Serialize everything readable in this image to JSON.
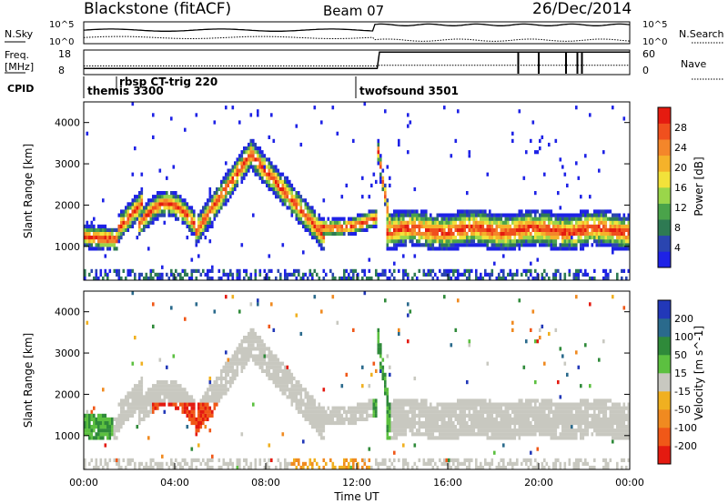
{
  "header": {
    "title": "Blackstone (fitACF)",
    "beam": "Beam 07",
    "date": "26/Dec/2014"
  },
  "top_panels": {
    "nsky_label": "N.Sky",
    "nsearch_label": "N.Search",
    "nsky_ticks": [
      "10^5",
      "10^0"
    ],
    "nsearch_ticks": [
      "10^5",
      "10^0"
    ],
    "freq_label_1": "Freq.",
    "freq_label_2": "[MHz]",
    "freq_ticks": [
      "18",
      "8"
    ],
    "nave_label": "Nave",
    "nave_ticks": [
      "60",
      "0"
    ],
    "cpid_label": "CPID",
    "cpid_modes": [
      {
        "name": "themis 3300",
        "start_hour": 0.0
      },
      {
        "name": "rbsp CT-trig 220",
        "start_hour": 1.3
      },
      {
        "name": "twofsound 3501",
        "start_hour": 12.0
      }
    ]
  },
  "chart_data": [
    {
      "type": "heatmap",
      "name": "power",
      "ylabel": "Slant Range [km]",
      "xlim": [
        0,
        24
      ],
      "ylim": [
        180,
        4500
      ],
      "yticks": [
        "1000",
        "2000",
        "3000",
        "4000"
      ],
      "colorbar": {
        "label": "Power [dB]",
        "ticks": [
          "4",
          "8",
          "12",
          "16",
          "20",
          "24",
          "28"
        ],
        "colors": [
          "#1e22e6",
          "#2a45b0",
          "#2e7a53",
          "#4aa34a",
          "#9ad64a",
          "#f2e23a",
          "#f5b22a",
          "#f4862a",
          "#f0501e",
          "#e51b10"
        ]
      }
    },
    {
      "type": "heatmap",
      "name": "velocity",
      "ylabel": "Slant Range [km]",
      "xlabel": "Time UT",
      "xlim": [
        0,
        24
      ],
      "ylim": [
        180,
        4500
      ],
      "yticks": [
        "1000",
        "2000",
        "3000",
        "4000"
      ],
      "xticks": [
        "00:00",
        "04:00",
        "08:00",
        "12:00",
        "16:00",
        "20:00",
        "00:00"
      ],
      "colorbar": {
        "label": "Velocity [m s^-1]",
        "ticks": [
          "200",
          "100",
          "50",
          "15",
          "-15",
          "-50",
          "-100",
          "-200"
        ],
        "colors": [
          "#2238b8",
          "#2a6a8c",
          "#2f8a3a",
          "#5cc040",
          "#c8c8c0",
          "#f0b020",
          "#f08a20",
          "#f05818",
          "#e41a10"
        ]
      }
    }
  ]
}
